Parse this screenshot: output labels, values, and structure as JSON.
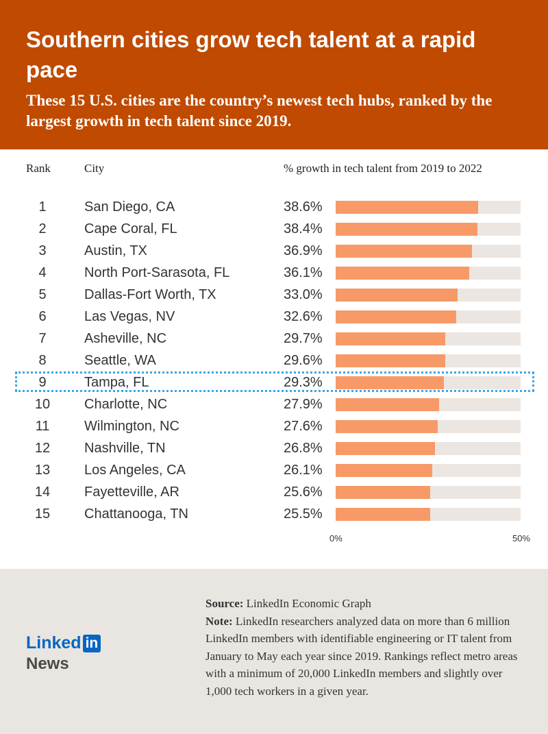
{
  "header": {
    "title": "Southern cities grow tech talent at a rapid pace",
    "subtitle": "These 15 U.S. cities are the country’s newest tech hubs, ranked by the largest growth in tech talent since 2019."
  },
  "columns": {
    "rank": "Rank",
    "city": "City",
    "growth": "% growth in tech talent from 2019 to 2022"
  },
  "chart_data": {
    "type": "bar",
    "title": "Southern cities grow tech talent at a rapid pace",
    "xlabel": "% growth in tech talent from 2019 to 2022",
    "xlim": [
      0,
      50
    ],
    "tick_labels": [
      "0%",
      "50%"
    ],
    "bar_color": "#f79a68",
    "track_color": "#ebe6e1",
    "highlight_color": "#3da3e6",
    "highlighted_rank": "9",
    "rows": [
      {
        "rank": "1",
        "city": "San Diego, CA",
        "value": 38.6,
        "label": "38.6%"
      },
      {
        "rank": "2",
        "city": "Cape Coral, FL",
        "value": 38.4,
        "label": "38.4%"
      },
      {
        "rank": "3",
        "city": "Austin, TX",
        "value": 36.9,
        "label": "36.9%"
      },
      {
        "rank": "4",
        "city": "North Port-Sarasota, FL",
        "value": 36.1,
        "label": "36.1%"
      },
      {
        "rank": "5",
        "city": "Dallas-Fort Worth, TX",
        "value": 33.0,
        "label": "33.0%"
      },
      {
        "rank": "6",
        "city": "Las Vegas, NV",
        "value": 32.6,
        "label": "32.6%"
      },
      {
        "rank": "7",
        "city": "Asheville, NC",
        "value": 29.7,
        "label": "29.7%"
      },
      {
        "rank": "8",
        "city": "Seattle, WA",
        "value": 29.6,
        "label": "29.6%"
      },
      {
        "rank": "9",
        "city": "Tampa, FL",
        "value": 29.3,
        "label": "29.3%"
      },
      {
        "rank": "10",
        "city": "Charlotte, NC",
        "value": 27.9,
        "label": "27.9%"
      },
      {
        "rank": "11",
        "city": "Wilmington, NC",
        "value": 27.6,
        "label": "27.6%"
      },
      {
        "rank": "12",
        "city": "Nashville, TN",
        "value": 26.8,
        "label": "26.8%"
      },
      {
        "rank": "13",
        "city": "Los Angeles, CA",
        "value": 26.1,
        "label": "26.1%"
      },
      {
        "rank": "14",
        "city": "Fayetteville, AR",
        "value": 25.6,
        "label": "25.6%"
      },
      {
        "rank": "15",
        "city": "Chattanooga, TN",
        "value": 25.5,
        "label": "25.5%"
      }
    ]
  },
  "footer": {
    "logo_linked": "Linked",
    "logo_in": "in",
    "logo_news": "News",
    "source_label": "Source:",
    "source_text": " LinkedIn Economic Graph",
    "note_label": "Note:",
    "note_text": " LinkedIn researchers analyzed data on more than 6 million LinkedIn members with identifiable engineering or IT talent from January to May each year since 2019. Rankings reflect metro areas with a minimum of 20,000 LinkedIn members and slightly over 1,000 tech workers in a given year."
  },
  "colors": {
    "header_bg": "#bf4a00",
    "footer_bg": "#e9e6e1",
    "brand_blue": "#0a66c2"
  }
}
